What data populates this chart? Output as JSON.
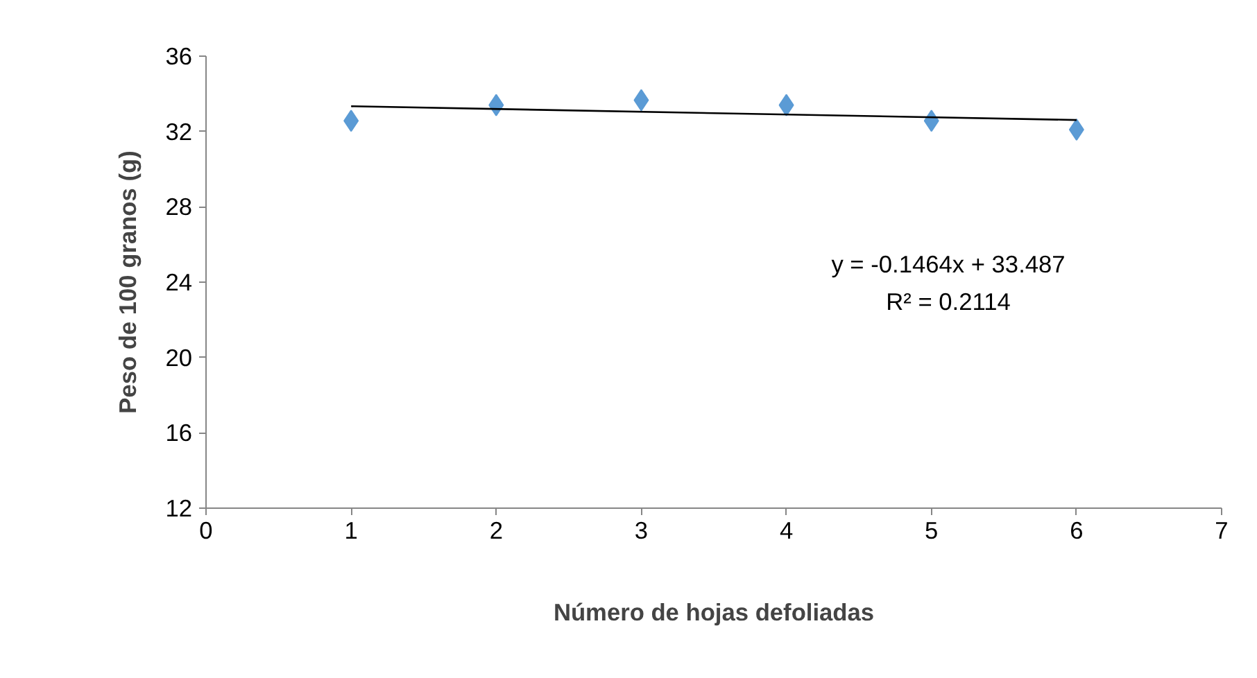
{
  "chart_data": {
    "type": "scatter",
    "xlabel": "Número de hojas defoliadas",
    "ylabel": "Peso de 100 granos (g)",
    "x": [
      1,
      2,
      3,
      4,
      5,
      6
    ],
    "series": [
      {
        "color": "#5b9bd5",
        "values": [
          32.57,
          33.4,
          33.66,
          33.4,
          32.57,
          32.1
        ],
        "marker": "diamond"
      },
      {
        "type": "line",
        "color": "#000000",
        "x": [
          1,
          6
        ],
        "values": [
          33.34,
          32.61
        ]
      }
    ],
    "xlim": [
      0,
      7
    ],
    "xticks": [
      0,
      1,
      2,
      3,
      4,
      5,
      6,
      7
    ],
    "ylim": [
      12,
      36
    ],
    "yticks": [
      12,
      16,
      20,
      24,
      28,
      32,
      36
    ],
    "grid": false,
    "annotations": [
      "y = -0.1464x + 33.487",
      "R² = 0.2114"
    ]
  }
}
